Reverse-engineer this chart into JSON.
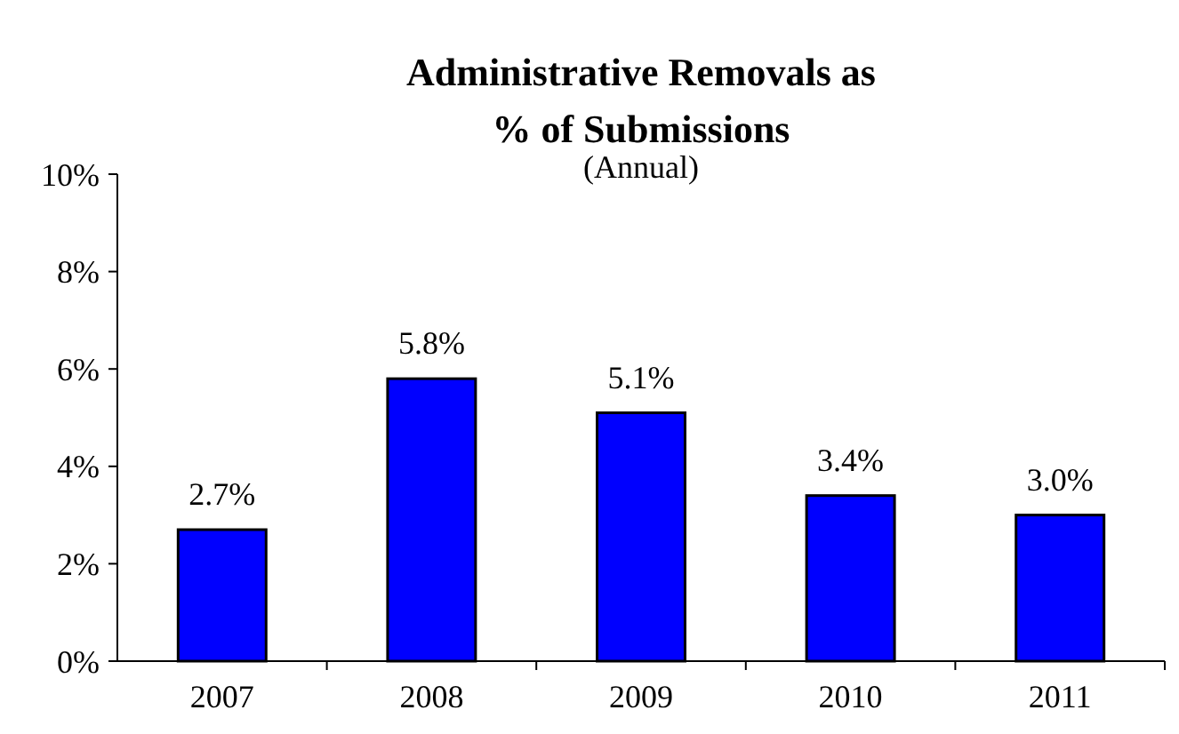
{
  "chart_data": {
    "type": "bar",
    "title": "Administrative Removals as % of Submissions",
    "subtitle": "(Annual)",
    "categories": [
      "2007",
      "2008",
      "2009",
      "2010",
      "2011"
    ],
    "values": [
      2.7,
      5.8,
      5.1,
      3.4,
      3.0
    ],
    "value_labels": [
      "2.7%",
      "5.8%",
      "5.1%",
      "3.4%",
      "3.0%"
    ],
    "color": "#0000ff",
    "ylim": [
      0,
      10
    ],
    "yticks": [
      {
        "value": 0,
        "label": "0%"
      },
      {
        "value": 2,
        "label": "2%"
      },
      {
        "value": 4,
        "label": "4%"
      },
      {
        "value": 6,
        "label": "6%"
      },
      {
        "value": 8,
        "label": "8%"
      },
      {
        "value": 10,
        "label": "10%"
      }
    ],
    "grid": false
  }
}
